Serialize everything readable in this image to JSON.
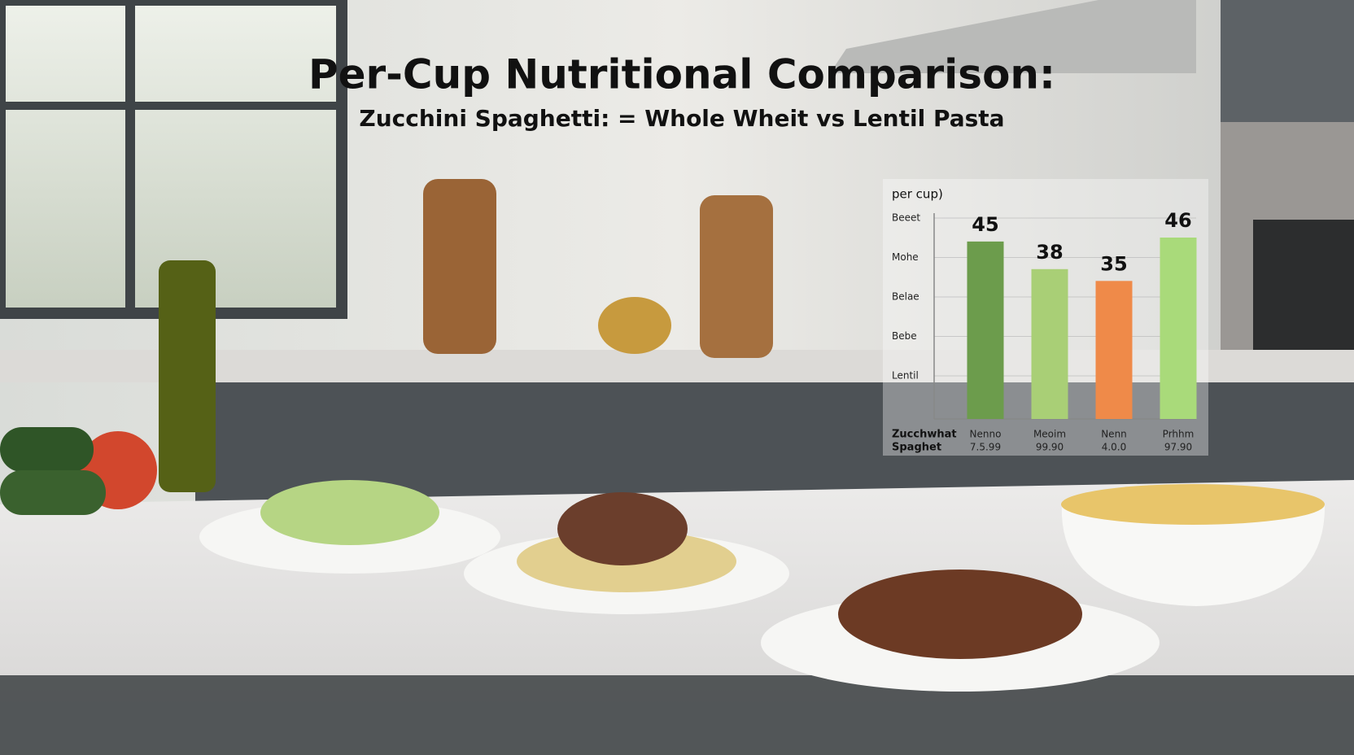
{
  "chart_data": {
    "type": "bar",
    "title": "Per-Cup Nutritional Comparison:",
    "subtitle": "Zucchini Spaghetti: = Whole Wheit vs Lentil Pasta",
    "y_label": "per cup)",
    "y_labels": [
      "Beeet",
      "Mohe",
      "Belae",
      "Bebe",
      "Lentil"
    ],
    "x_label": [
      "Zucchwhat",
      "Spaghet"
    ],
    "categories": [
      "Nenno",
      "Meoim",
      "Nenn",
      "Prhhm"
    ],
    "category_sublabels": [
      "7.5.99",
      "99.90",
      "4.0.0",
      "97.90"
    ],
    "values": [
      45,
      38,
      35,
      46
    ],
    "colors": [
      "#6c9c4c",
      "#a9cf76",
      "#ef8a49",
      "#a9da7a"
    ],
    "grid": true
  }
}
